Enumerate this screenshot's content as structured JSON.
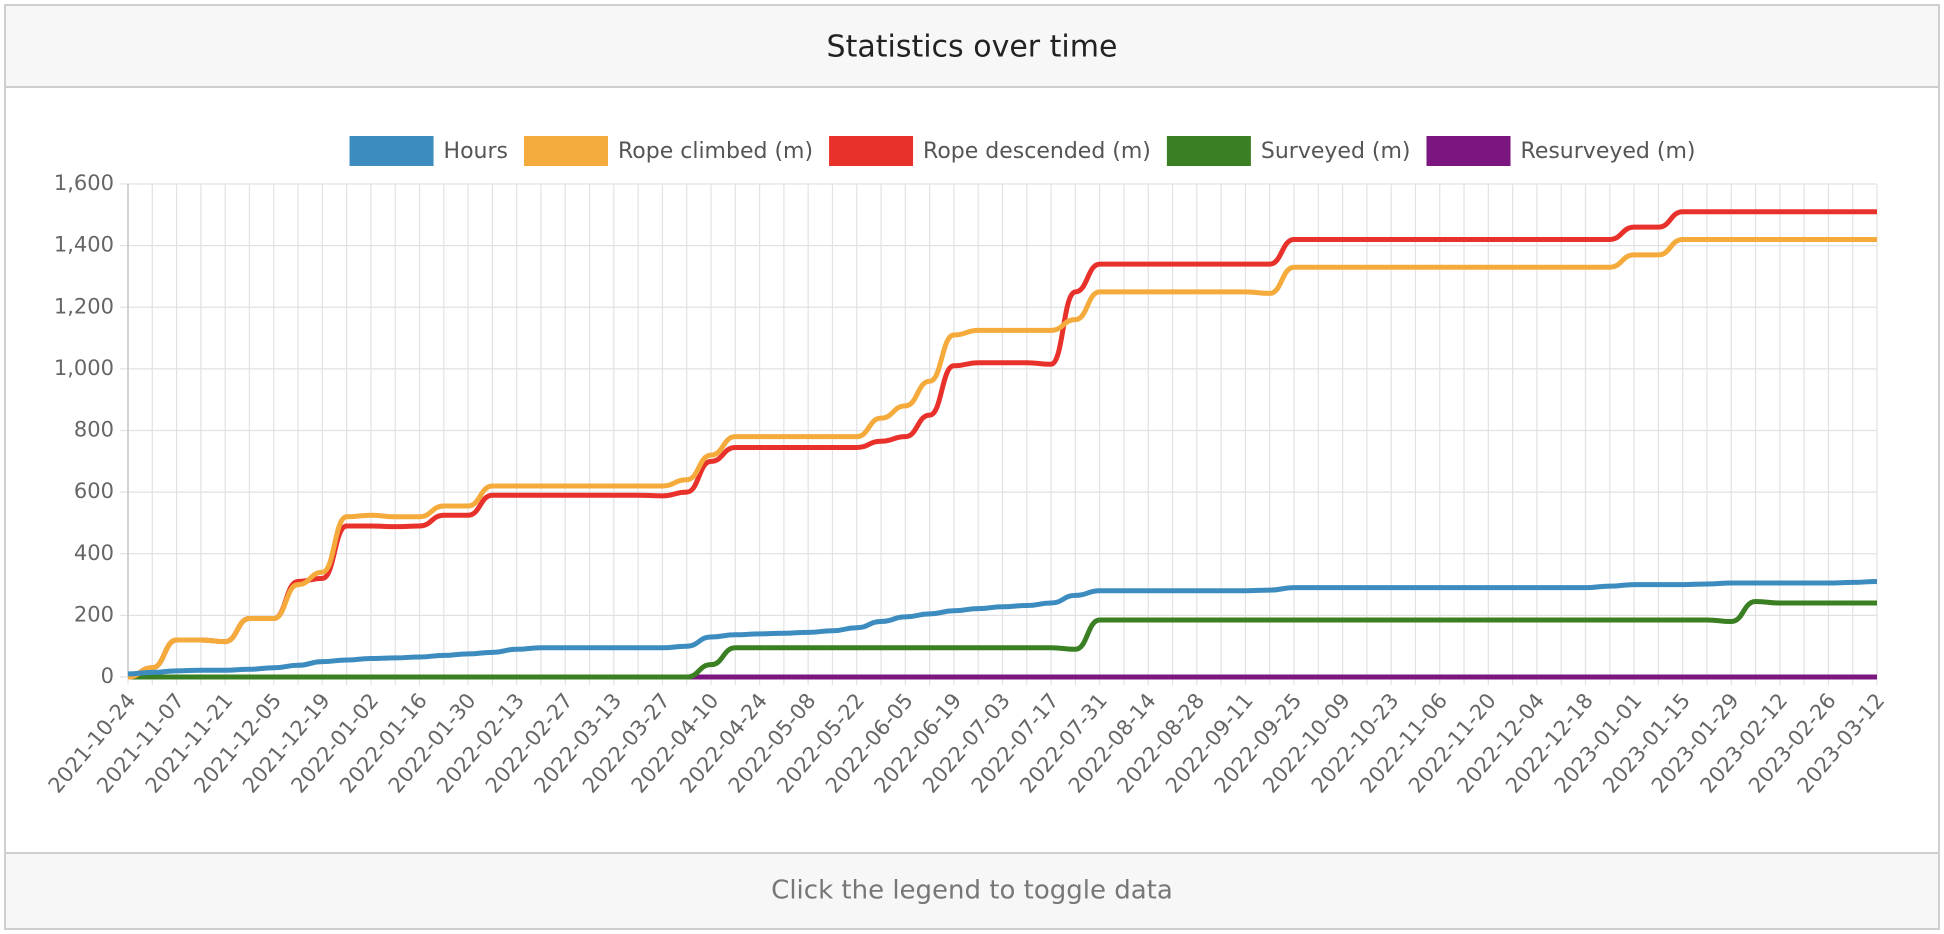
{
  "chart_data": {
    "type": "line",
    "title": "Statistics over time",
    "categories": [
      "2021-10-24",
      null,
      "2021-11-07",
      null,
      "2021-11-21",
      null,
      "2021-12-05",
      null,
      "2021-12-19",
      null,
      "2022-01-02",
      null,
      "2022-01-16",
      null,
      "2022-01-30",
      null,
      "2022-02-13",
      null,
      "2022-02-27",
      null,
      "2022-03-13",
      null,
      "2022-03-27",
      null,
      "2022-04-10",
      null,
      "2022-04-24",
      null,
      "2022-05-08",
      null,
      "2022-05-22",
      null,
      "2022-06-05",
      null,
      "2022-06-19",
      null,
      "2022-07-03",
      null,
      "2022-07-17",
      null,
      "2022-07-31",
      null,
      "2022-08-14",
      null,
      "2022-08-28",
      null,
      "2022-09-11",
      null,
      "2022-09-25",
      null,
      "2022-10-09",
      null,
      "2022-10-23",
      null,
      "2022-11-06",
      null,
      "2022-11-20",
      null,
      "2022-12-04",
      null,
      "2022-12-18",
      null,
      "2023-01-01",
      null,
      "2023-01-15",
      null,
      "2023-01-29",
      null,
      "2023-02-12",
      null,
      "2023-02-26",
      null,
      "2023-03-12"
    ],
    "series": [
      {
        "name": "Hours",
        "color": "#3c8cbf",
        "values": [
          10,
          15,
          20,
          22,
          22,
          25,
          30,
          38,
          50,
          55,
          60,
          62,
          65,
          70,
          75,
          80,
          90,
          95,
          95,
          95,
          95,
          95,
          95,
          100,
          130,
          137,
          140,
          142,
          145,
          150,
          160,
          180,
          195,
          205,
          215,
          222,
          228,
          232,
          240,
          265,
          280,
          280,
          280,
          280,
          280,
          280,
          280,
          282,
          290,
          290,
          290,
          290,
          290,
          290,
          290,
          290,
          290,
          290,
          290,
          290,
          290,
          295,
          300,
          300,
          300,
          302,
          305,
          305,
          305,
          305,
          305,
          307,
          310
        ]
      },
      {
        "name": "Rope climbed (m)",
        "color": "#f4ab3c",
        "values": [
          0,
          30,
          120,
          120,
          115,
          190,
          190,
          300,
          340,
          520,
          525,
          520,
          520,
          555,
          555,
          620,
          620,
          620,
          620,
          620,
          620,
          620,
          620,
          640,
          720,
          780,
          780,
          780,
          780,
          780,
          780,
          840,
          880,
          960,
          1110,
          1125,
          1125,
          1125,
          1125,
          1160,
          1250,
          1250,
          1250,
          1250,
          1250,
          1250,
          1250,
          1245,
          1330,
          1330,
          1330,
          1330,
          1330,
          1330,
          1330,
          1330,
          1330,
          1330,
          1330,
          1330,
          1330,
          1330,
          1370,
          1370,
          1420,
          1420,
          1420,
          1420,
          1420,
          1420,
          1420,
          1420,
          1420
        ]
      },
      {
        "name": "Rope descended (m)",
        "color": "#e8312a",
        "values": [
          0,
          30,
          120,
          120,
          115,
          190,
          190,
          310,
          320,
          490,
          490,
          488,
          490,
          525,
          525,
          590,
          590,
          590,
          590,
          590,
          590,
          590,
          588,
          600,
          700,
          745,
          745,
          745,
          745,
          745,
          745,
          765,
          780,
          850,
          1010,
          1020,
          1020,
          1020,
          1015,
          1250,
          1340,
          1340,
          1340,
          1340,
          1340,
          1340,
          1340,
          1340,
          1420,
          1420,
          1420,
          1420,
          1420,
          1420,
          1420,
          1420,
          1420,
          1420,
          1420,
          1420,
          1420,
          1420,
          1460,
          1460,
          1510,
          1510,
          1510,
          1510,
          1510,
          1510,
          1510,
          1510,
          1510
        ]
      },
      {
        "name": "Surveyed (m)",
        "color": "#3a7f22",
        "values": [
          0,
          0,
          0,
          0,
          0,
          0,
          0,
          0,
          0,
          0,
          0,
          0,
          0,
          0,
          0,
          0,
          0,
          0,
          0,
          0,
          0,
          0,
          0,
          0,
          40,
          95,
          95,
          95,
          95,
          95,
          95,
          95,
          95,
          95,
          95,
          95,
          95,
          95,
          95,
          90,
          185,
          185,
          185,
          185,
          185,
          185,
          185,
          185,
          185,
          185,
          185,
          185,
          185,
          185,
          185,
          185,
          185,
          185,
          185,
          185,
          185,
          185,
          185,
          185,
          185,
          185,
          180,
          245,
          240,
          240,
          240,
          240,
          240
        ]
      },
      {
        "name": "Resurveyed (m)",
        "color": "#7b1680",
        "values": [
          0,
          0,
          0,
          0,
          0,
          0,
          0,
          0,
          0,
          0,
          0,
          0,
          0,
          0,
          0,
          0,
          0,
          0,
          0,
          0,
          0,
          0,
          0,
          0,
          0,
          0,
          0,
          0,
          0,
          0,
          0,
          0,
          0,
          0,
          0,
          0,
          0,
          0,
          0,
          0,
          0,
          0,
          0,
          0,
          0,
          0,
          0,
          0,
          0,
          0,
          0,
          0,
          0,
          0,
          0,
          0,
          0,
          0,
          0,
          0,
          0,
          0,
          0,
          0,
          0,
          0,
          0,
          0,
          0,
          0,
          0,
          0,
          0
        ]
      }
    ],
    "ylim": [
      0,
      1600
    ],
    "yticks": [
      0,
      200,
      400,
      600,
      800,
      {
        "value": 1000,
        "label": "1,000"
      },
      {
        "value": 1200,
        "label": "1,200"
      },
      {
        "value": 1400,
        "label": "1,400"
      },
      {
        "value": 1600,
        "label": "1,600"
      }
    ],
    "grid": true,
    "legend": "top"
  },
  "footer": "Click the legend to toggle data"
}
